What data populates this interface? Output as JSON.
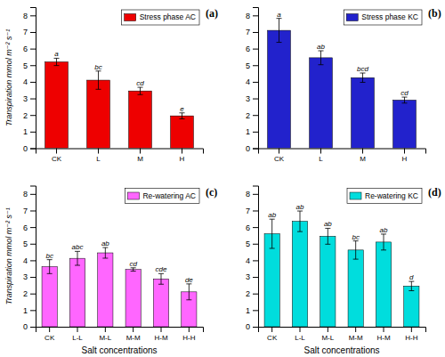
{
  "chart_data": [
    {
      "type": "bar",
      "title": "(a)",
      "categories": [
        "CK",
        "L",
        "M",
        "H"
      ],
      "series": [
        {
          "name": "Stress phase AC",
          "color": "#ee0000",
          "values": [
            5.2,
            4.1,
            3.45,
            1.95
          ],
          "errors": [
            0.22,
            0.55,
            0.22,
            0.18
          ]
        }
      ],
      "annotations": [
        "a",
        "bc",
        "cd",
        "e"
      ],
      "ylabel": "Transpiration mmol m⁻² s⁻¹",
      "ylim": [
        0,
        8.5
      ],
      "yticks": [
        0,
        1,
        2,
        3,
        4,
        5,
        6,
        7,
        8
      ],
      "grid": false,
      "legend": "upper right"
    },
    {
      "type": "bar",
      "title": "(b)",
      "categories": [
        "CK",
        "L",
        "M",
        "H"
      ],
      "series": [
        {
          "name": "Stress phase KC",
          "color": "#2222cc",
          "values": [
            7.1,
            5.45,
            4.25,
            2.9
          ],
          "errors": [
            0.72,
            0.42,
            0.28,
            0.18
          ]
        }
      ],
      "annotations": [
        "a",
        "ab",
        "bcd",
        "cd"
      ],
      "ylim": [
        0,
        8.5
      ],
      "yticks": [
        0,
        1,
        2,
        3,
        4,
        5,
        6,
        7,
        8
      ],
      "grid": false,
      "legend": "upper right"
    },
    {
      "type": "bar",
      "title": "(c)",
      "categories": [
        "CK",
        "L-L",
        "M-L",
        "M-M",
        "H-M",
        "H-H"
      ],
      "series": [
        {
          "name": "Re-watering AC",
          "color": "#ff66ff",
          "values": [
            3.62,
            4.12,
            4.45,
            3.45,
            2.88,
            2.1
          ],
          "errors": [
            0.42,
            0.42,
            0.32,
            0.1,
            0.32,
            0.48
          ]
        }
      ],
      "annotations": [
        "bc",
        "abc",
        "ab",
        "cd",
        "cde",
        "de"
      ],
      "xlabel": "Salt concentrations",
      "ylabel": "Transpiration mmol m⁻² s⁻¹",
      "ylim": [
        0,
        8.5
      ],
      "yticks": [
        0,
        1,
        2,
        3,
        4,
        5,
        6,
        7,
        8
      ],
      "grid": false,
      "legend": "upper right"
    },
    {
      "type": "bar",
      "title": "(d)",
      "categories": [
        "CK",
        "L-L",
        "M-L",
        "M-M",
        "H-M",
        "H-H"
      ],
      "series": [
        {
          "name": "Re-watering KC",
          "color": "#00dddd",
          "values": [
            5.6,
            6.35,
            5.45,
            4.62,
            5.1,
            2.45
          ],
          "errors": [
            0.88,
            0.62,
            0.48,
            0.55,
            0.48,
            0.28
          ]
        }
      ],
      "annotations": [
        "ab",
        "ab",
        "ab",
        "bc",
        "ab",
        "d"
      ],
      "xlabel": "Salt concentrations",
      "ylim": [
        0,
        8.5
      ],
      "yticks": [
        0,
        1,
        2,
        3,
        4,
        5,
        6,
        7,
        8
      ],
      "grid": false,
      "legend": "upper right"
    }
  ]
}
